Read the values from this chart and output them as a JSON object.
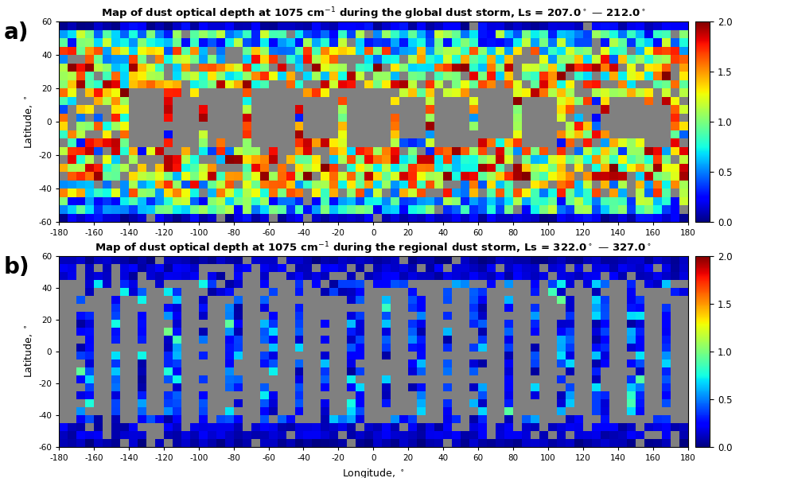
{
  "title_a": "Map of dust optical depth at 1075 cm$^{-1}$ during the global dust storm, Ls = 207.0$^\\circ$ — 212.0$^\\circ$",
  "title_b": "Map of dust optical depth at 1075 cm$^{-1}$ during the regional dust storm, Ls = 322.0$^\\circ$ — 327.0$^\\circ$",
  "xlabel": "Longitude, $^\\circ$",
  "ylabel": "Latitude, $^\\circ$",
  "label_a": "a)",
  "label_b": "b)",
  "lon_min": -180,
  "lon_max": 180,
  "lat_min": -60,
  "lat_max": 60,
  "vmin": 0,
  "vmax": 2,
  "colorbar_ticks": [
    0,
    0.5,
    1,
    1.5,
    2
  ],
  "lon_ticks": [
    -180,
    -160,
    -140,
    -120,
    -100,
    -80,
    -60,
    -40,
    -20,
    0,
    20,
    40,
    60,
    80,
    100,
    120,
    140,
    160,
    180
  ],
  "lat_ticks": [
    -60,
    -40,
    -20,
    0,
    20,
    40,
    60
  ],
  "grid_size_lon": 72,
  "grid_size_lat": 24,
  "background_color": "#ffffff"
}
